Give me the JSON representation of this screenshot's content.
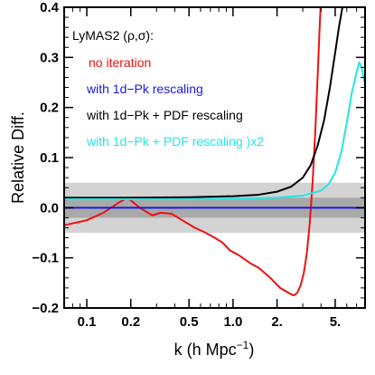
{
  "chart_data": {
    "type": "line",
    "title": "",
    "xlabel": "k (h Mpc",
    "xlabel_sup": "−1",
    "xlabel_close": ")",
    "ylabel": "Relative Diff.",
    "xscale": "log",
    "xlim": [
      0.07,
      8.0
    ],
    "ylim": [
      -0.2,
      0.4
    ],
    "xticks": [
      {
        "v": 0.1,
        "label": "0.1"
      },
      {
        "v": 0.2,
        "label": "0.2"
      },
      {
        "v": 0.5,
        "label": "0.5"
      },
      {
        "v": 1.0,
        "label": "1.0"
      },
      {
        "v": 2.0,
        "label": "2."
      },
      {
        "v": 5.0,
        "label": "5."
      }
    ],
    "yticks": [
      {
        "v": -0.2,
        "label": "−0.2"
      },
      {
        "v": -0.1,
        "label": "−0.1"
      },
      {
        "v": 0.0,
        "label": "0.0"
      },
      {
        "v": 0.1,
        "label": "0.1"
      },
      {
        "v": 0.2,
        "label": "0.2"
      },
      {
        "v": 0.3,
        "label": "0.3"
      },
      {
        "v": 0.4,
        "label": "0.4"
      }
    ],
    "bands": [
      {
        "y0": -0.05,
        "y1": 0.05,
        "color": "#d3d3d3"
      },
      {
        "y0": -0.02,
        "y1": 0.02,
        "color": "#a9a9a9"
      }
    ],
    "legend": {
      "placement": "top-left",
      "header": "LyMAS2 (ρ,σ):",
      "header_color": "#000000"
    },
    "series": [
      {
        "name": "no iteration",
        "color": "#ee1111",
        "x": [
          0.07,
          0.1,
          0.13,
          0.165,
          0.19,
          0.23,
          0.28,
          0.32,
          0.38,
          0.45,
          0.55,
          0.65,
          0.75,
          0.85,
          0.95,
          1.1,
          1.3,
          1.5,
          1.8,
          2.1,
          2.4,
          2.6,
          2.75,
          2.9,
          3.05,
          3.2,
          3.35,
          3.5,
          3.65,
          3.8,
          3.9,
          4.0,
          4.1
        ],
        "y": [
          -0.035,
          -0.025,
          -0.01,
          0.01,
          0.02,
          0.0,
          -0.015,
          -0.01,
          -0.012,
          -0.025,
          -0.04,
          -0.05,
          -0.06,
          -0.07,
          -0.085,
          -0.095,
          -0.11,
          -0.12,
          -0.14,
          -0.16,
          -0.17,
          -0.175,
          -0.17,
          -0.155,
          -0.13,
          -0.09,
          -0.03,
          0.05,
          0.15,
          0.27,
          0.35,
          0.42,
          0.48
        ]
      },
      {
        "name": "with 1d−Pk rescaling",
        "color": "#1a1adc",
        "x": [
          0.07,
          8.0
        ],
        "y": [
          0.0,
          0.0
        ]
      },
      {
        "name": "with 1d−Pk + PDF rescaling",
        "color": "#000000",
        "x": [
          0.07,
          0.2,
          0.5,
          1.0,
          1.5,
          2.0,
          2.5,
          3.0,
          3.4,
          3.8,
          4.2,
          4.6,
          5.0,
          5.3,
          5.6,
          5.9
        ],
        "y": [
          0.02,
          0.02,
          0.021,
          0.023,
          0.026,
          0.032,
          0.042,
          0.06,
          0.085,
          0.125,
          0.175,
          0.24,
          0.31,
          0.36,
          0.4,
          0.44
        ]
      },
      {
        "name": "with 1d−Pk + PDF rescaling )x2",
        "color": "#22e6e6",
        "x": [
          0.07,
          0.5,
          1.0,
          2.0,
          3.0,
          4.0,
          4.5,
          5.0,
          5.5,
          6.0,
          6.5,
          7.0,
          7.3,
          7.6,
          7.9
        ],
        "y": [
          0.017,
          0.017,
          0.018,
          0.02,
          0.024,
          0.034,
          0.047,
          0.07,
          0.11,
          0.17,
          0.23,
          0.27,
          0.29,
          0.28,
          0.25
        ]
      }
    ]
  }
}
